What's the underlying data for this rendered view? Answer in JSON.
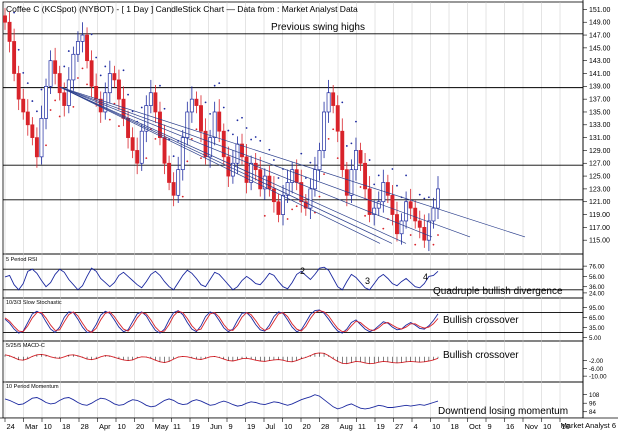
{
  "chart_data": [
    {
      "type": "candlestick",
      "title": "Coffee C (KCSpot) (NYBOT) -  [ 1 Day ] CandleStick Chart — Data from : Market Analyst Data",
      "ylim": [
        113,
        152
      ],
      "y_ticks": [
        "151.00",
        "149.00",
        "147.00",
        "145.00",
        "143.00",
        "141.00",
        "139.00",
        "137.00",
        "135.00",
        "133.00",
        "131.00",
        "129.00",
        "127.00",
        "125.00",
        "123.00",
        "121.00",
        "119.00",
        "117.00",
        "115.00"
      ],
      "y_tick_values": [
        151,
        149,
        147,
        145,
        143,
        141,
        139,
        137,
        135,
        133,
        131,
        129,
        127,
        125,
        123,
        121,
        119,
        117,
        115
      ],
      "x_ticks": [
        "24",
        "Mar",
        "10",
        "18",
        "28",
        "Apr",
        "10",
        "20",
        "May",
        "11",
        "19",
        "Jun",
        "9",
        "19",
        "Jul",
        "10",
        "20",
        "28",
        "Aug",
        "11",
        "19",
        "27",
        "4",
        "10",
        "18",
        "Oct",
        "9",
        "16",
        "Nov",
        "10",
        "16"
      ],
      "horizontal_levels": [
        147.2,
        138.8,
        126.7,
        121.3
      ],
      "annotations": [
        "Previous swing highs"
      ],
      "series": [
        {
          "values": [
            149,
            146,
            141,
            137,
            135,
            133,
            131,
            128,
            134,
            139,
            143,
            141,
            138,
            136,
            140,
            144,
            146,
            147,
            143,
            139,
            137,
            135,
            138,
            141,
            140,
            137,
            134,
            131,
            129,
            127,
            132,
            136,
            138,
            135,
            131,
            127,
            124,
            122,
            126,
            131,
            135,
            137,
            136,
            132,
            128,
            131,
            135,
            132,
            128,
            125,
            127,
            130,
            128,
            124,
            127,
            126,
            123,
            125,
            123,
            121,
            119,
            122,
            124,
            126,
            124,
            121,
            120,
            123,
            126,
            129,
            135,
            138,
            136,
            132,
            126,
            122,
            126,
            129,
            127,
            123,
            119,
            120,
            121,
            124,
            122,
            119,
            116,
            118,
            121,
            120,
            118,
            117,
            115,
            118,
            120,
            123
          ]
        }
      ]
    },
    {
      "type": "line",
      "title": "5 Period RSI",
      "y_ticks": [
        "76.00",
        "56.00",
        "36.00",
        "24.00"
      ],
      "y_tick_values": [
        76,
        56,
        36,
        24
      ],
      "ylim": [
        18,
        84
      ],
      "horizontal_levels": [
        70,
        30
      ],
      "annotations": [
        "2",
        "3",
        "4",
        "Quadruple bullish divergence"
      ],
      "series": [
        {
          "values": [
            55,
            58,
            40,
            30,
            42,
            66,
            70,
            62,
            48,
            36,
            44,
            60,
            70,
            64,
            50,
            40,
            30,
            38,
            56,
            72,
            66,
            52,
            44,
            36,
            44,
            58,
            64,
            56,
            48,
            40,
            34,
            46,
            60,
            66,
            58,
            46,
            36,
            30,
            44,
            58,
            68,
            62,
            52,
            40,
            36,
            50,
            64,
            60,
            50,
            40,
            30,
            36,
            48,
            56,
            50,
            42,
            40,
            50,
            62,
            58,
            46,
            36,
            32,
            44,
            60,
            66,
            58,
            50,
            60,
            72,
            74,
            68,
            52,
            36,
            30,
            46,
            60,
            54,
            44,
            34,
            30,
            42,
            54,
            60,
            52,
            42,
            38,
            46,
            52,
            44,
            36,
            34,
            42,
            56,
            58,
            66
          ]
        }
      ]
    },
    {
      "type": "line",
      "title": "10/3/3 Slow Stochastic",
      "y_ticks": [
        "95.00",
        "65.00",
        "35.00",
        "5.00"
      ],
      "y_tick_values": [
        95,
        65,
        35,
        5
      ],
      "ylim": [
        0,
        100
      ],
      "horizontal_levels": [
        80,
        20
      ],
      "annotations": [
        "Bullish crossover"
      ],
      "series": [
        {
          "values": [
            60,
            48,
            30,
            18,
            24,
            50,
            76,
            84,
            76,
            52,
            30,
            20,
            36,
            66,
            82,
            80,
            60,
            36,
            20,
            22,
            44,
            72,
            84,
            78,
            58,
            36,
            22,
            28,
            52,
            76,
            82,
            70,
            46,
            26,
            18,
            30,
            58,
            80,
            86,
            74,
            50,
            30,
            22,
            40,
            68,
            82,
            76,
            56,
            34,
            22,
            30,
            56,
            78,
            80,
            66,
            44,
            28,
            24,
            42,
            68,
            82,
            78,
            58,
            36,
            22,
            28,
            50,
            74,
            86,
            88,
            78,
            60,
            40,
            24,
            18,
            30,
            50,
            58,
            44,
            30,
            22,
            28,
            40,
            52,
            48,
            36,
            28,
            30,
            42,
            50,
            42,
            32,
            30,
            40,
            56,
            76
          ]
        },
        {
          "values": [
            64,
            54,
            38,
            24,
            22,
            40,
            64,
            80,
            80,
            64,
            42,
            26,
            28,
            52,
            74,
            82,
            70,
            48,
            28,
            20,
            32,
            58,
            78,
            82,
            68,
            48,
            30,
            24,
            40,
            64,
            80,
            76,
            58,
            36,
            22,
            24,
            44,
            70,
            84,
            80,
            62,
            40,
            26,
            30,
            54,
            76,
            80,
            66,
            44,
            28,
            26,
            42,
            66,
            80,
            74,
            56,
            36,
            26,
            32,
            54,
            76,
            80,
            68,
            46,
            30,
            24,
            38,
            62,
            80,
            86,
            82,
            70,
            50,
            32,
            22,
            24,
            40,
            54,
            50,
            38,
            28,
            26,
            34,
            46,
            50,
            42,
            34,
            30,
            36,
            46,
            46,
            38,
            33,
            36,
            46,
            62
          ]
        }
      ]
    },
    {
      "type": "line",
      "title": "5/25/5 MACD-C",
      "y_ticks": [
        "-2.00",
        "-6.00",
        "-10.00"
      ],
      "y_tick_values": [
        -2,
        -6,
        -10
      ],
      "ylim": [
        -12,
        4
      ],
      "annotations": [
        "Bullish crossover"
      ],
      "series": [
        {
          "values": [
            1,
            0.5,
            -0.5,
            -1.5,
            -1.8,
            -1,
            0.2,
            1,
            1.2,
            0.8,
            0,
            -0.6,
            -0.8,
            0,
            0.8,
            1,
            0.5,
            -0.3,
            -1.2,
            -1.5,
            -1,
            0,
            0.6,
            0.4,
            -0.3,
            -1,
            -1.6,
            -2,
            -1.6,
            -0.6,
            0,
            -0.2,
            -0.8,
            -1.8,
            -2.6,
            -3,
            -2.4,
            -1.2,
            -0.2,
            0.2,
            0,
            -0.6,
            -1.2,
            -1.4,
            -0.8,
            0,
            0.2,
            -0.4,
            -1.2,
            -2,
            -2.2,
            -1.6,
            -1,
            -0.8,
            -1.2,
            -1.8,
            -2.2,
            -2.4,
            -2,
            -1.6,
            -1.4,
            -1.8,
            -2.4,
            -2.6,
            -2,
            -1,
            -0.4,
            0.6,
            1.6,
            2,
            1.8,
            0.6,
            -1,
            -2.4,
            -3.4,
            -3.6,
            -3,
            -2.4,
            -2.6,
            -3.2,
            -3.6,
            -3.4,
            -2.8,
            -2.4,
            -2.6,
            -3,
            -3.2,
            -3,
            -2.6,
            -2.4,
            -2.6,
            -2.8,
            -2.6,
            -2.2,
            -1.6,
            -0.8
          ]
        }
      ]
    },
    {
      "type": "line",
      "title": "10 Period Momentum",
      "y_ticks": [
        "108",
        "96",
        "84"
      ],
      "y_tick_values": [
        108,
        96,
        84
      ],
      "ylim": [
        78,
        116
      ],
      "annotations": [
        "Downtrend losing momentum"
      ],
      "series": [
        {
          "values": [
            102,
            100,
            97,
            94,
            95,
            99,
            103,
            104,
            101,
            97,
            95,
            96,
            100,
            103,
            104,
            101,
            97,
            94,
            93,
            96,
            100,
            103,
            102,
            99,
            95,
            93,
            94,
            98,
            101,
            100,
            97,
            93,
            91,
            92,
            96,
            100,
            102,
            100,
            96,
            94,
            95,
            99,
            101,
            99,
            96,
            93,
            94,
            97,
            99,
            97,
            94,
            92,
            93,
            96,
            98,
            97,
            95,
            94,
            96,
            98,
            97,
            95,
            93,
            95,
            98,
            101,
            103,
            105,
            108,
            106,
            101,
            96,
            91,
            88,
            90,
            93,
            95,
            92,
            89,
            88,
            89,
            91,
            93,
            92,
            90,
            90,
            91,
            92,
            93,
            92,
            93,
            94,
            93,
            95,
            97,
            99
          ]
        }
      ]
    }
  ],
  "footer": {
    "source_label": "Market Analyst 6"
  }
}
